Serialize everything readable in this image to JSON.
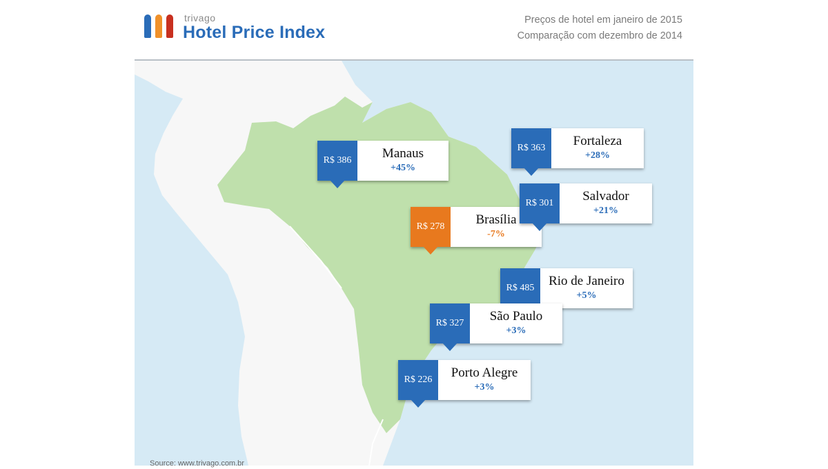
{
  "header": {
    "brand_small": "trivago",
    "brand_title": "Hotel Price Index",
    "subtitle_line1": "Preços de hotel em janeiro de 2015",
    "subtitle_line2": "Comparação com dezembro de 2014",
    "logo_colors": [
      "#2a6cb8",
      "#f0912a",
      "#c8301f"
    ]
  },
  "colors": {
    "ocean": "#d6eaf5",
    "land": "#f7f7f7",
    "brazil": "#bfe0ac",
    "border": "#ffffff",
    "increase": "#2a6cb8",
    "decrease": "#e8791e"
  },
  "cities": [
    {
      "name": "Manaus",
      "price": "R$ 386",
      "change": "+45%",
      "trend": "up"
    },
    {
      "name": "Fortaleza",
      "price": "R$ 363",
      "change": "+28%",
      "trend": "up"
    },
    {
      "name": "Brasília",
      "price": "R$ 278",
      "change": "-7%",
      "trend": "down"
    },
    {
      "name": "Salvador",
      "price": "R$ 301",
      "change": "+21%",
      "trend": "up"
    },
    {
      "name": "Rio de Janeiro",
      "price": "R$ 485",
      "change": "+5%",
      "trend": "up"
    },
    {
      "name": "São Paulo",
      "price": "R$ 327",
      "change": "+3%",
      "trend": "up"
    },
    {
      "name": "Porto Alegre",
      "price": "R$ 226",
      "change": "+3%",
      "trend": "up"
    }
  ],
  "source": "Source: www.trivago.com.br"
}
